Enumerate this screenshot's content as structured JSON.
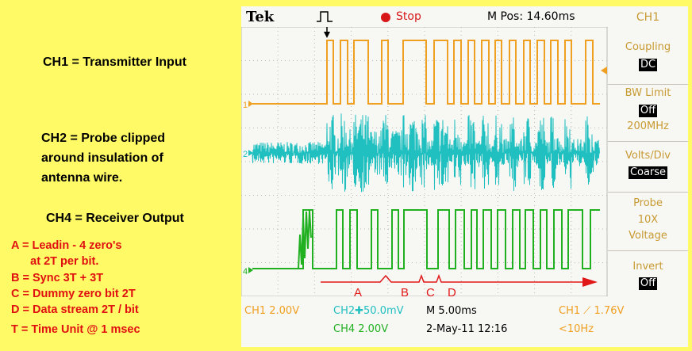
{
  "notes": {
    "ch1": "CH1 = Transmitter Input",
    "ch2_line1": "CH2 = Probe clipped",
    "ch2_line2": "around insulation of",
    "ch2_line3": "antenna wire.",
    "ch4": "CH4 = Receiver Output"
  },
  "legend": {
    "a1": "A = Leadin - 4 zero's",
    "a2": "      at 2T per bit.",
    "b": "B = Sync 3T + 3T",
    "c": "C = Dummy zero bit 2T",
    "d": "D = Data stream 2T / bit",
    "t": "T = Time Unit @ 1 msec"
  },
  "header": {
    "brand": "Tek",
    "status": "Stop",
    "mpos": "M Pos: 14.60ms",
    "channel": "CH1"
  },
  "menu": {
    "coupling_label": "Coupling",
    "coupling_value": "DC",
    "bwlimit_label": "BW Limit",
    "bwlimit_value": "Off",
    "bwlimit_freq": "200MHz",
    "voltsdiv_label": "Volts/Div",
    "voltsdiv_value": "Coarse",
    "probe_label": "Probe",
    "probe_value1": "10X",
    "probe_value2": "Voltage",
    "invert_label": "Invert",
    "invert_value": "Off"
  },
  "bottom": {
    "ch1": "CH1  2.00V",
    "ch2": "CH2",
    "ch2_val": "50.0mV",
    "timebase": "M 5.00ms",
    "trigger": "CH1",
    "trigger_val": "1.76V",
    "ch4": "CH4  2.00V",
    "date": "2-May-11 12:16",
    "freq": "<10Hz"
  },
  "annotations": {
    "a": "A",
    "b": "B",
    "c": "C",
    "d": "D"
  },
  "markers": {
    "ch1": "1",
    "ch2": "2",
    "ch4": "4"
  },
  "colors": {
    "ch1": "#f0a020",
    "ch2": "#20c0c0",
    "ch4": "#20b020",
    "annotation": "#e01818",
    "menu_text": "#c89a32",
    "background": "#fffa66"
  }
}
